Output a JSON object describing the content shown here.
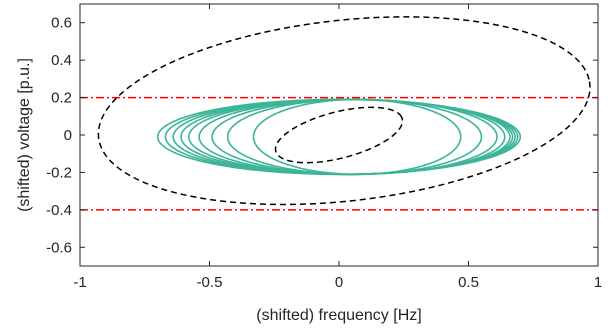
{
  "chart_data": {
    "type": "line",
    "title": "",
    "xlabel": "(shifted) frequency [Hz]",
    "ylabel": "(shifted) voltage [p.u.]",
    "xlim": [
      -1,
      1
    ],
    "ylim": [
      -0.7,
      0.7
    ],
    "xticks": [
      -1,
      -0.5,
      0,
      0.5,
      1
    ],
    "xtick_labels": [
      "-1",
      "-0.5",
      "0",
      "0.5",
      "1"
    ],
    "yticks": [
      -0.6,
      -0.4,
      -0.2,
      0,
      0.2,
      0.4,
      0.6
    ],
    "ytick_labels": [
      "-0.6",
      "-0.4",
      "-0.2",
      "0",
      "0.2",
      "0.4",
      "0.6"
    ],
    "grid": false,
    "colors": {
      "trajectory": "#3cb497",
      "ellipse": "#000000",
      "limits": "#ff0000",
      "axes": "#262626"
    },
    "series": [
      {
        "style": "dash-dot red horizontal line",
        "x": [
          -1,
          1
        ],
        "y": [
          0.2,
          0.2
        ]
      },
      {
        "style": "dash-dot red horizontal line",
        "x": [
          -1,
          1
        ],
        "y": [
          -0.4,
          -0.4
        ]
      },
      {
        "style": "dashed black ellipse (outer)",
        "center": [
          0.02,
          0.13
        ],
        "semi_axes": [
          0.96,
          0.48
        ],
        "rotation_deg": 10
      },
      {
        "style": "dashed black ellipse (inner)",
        "center": [
          0.0,
          0.0
        ],
        "semi_axes": [
          0.26,
          0.12
        ],
        "rotation_deg": 22
      },
      {
        "style": "solid teal nested ellipses (trajectory loops)",
        "loops": [
          {
            "center": [
              0.0,
              -0.01
            ],
            "semi_axes": [
              0.7,
              0.2
            ]
          },
          {
            "center": [
              0.01,
              -0.01
            ],
            "semi_axes": [
              0.68,
              0.2
            ]
          },
          {
            "center": [
              0.02,
              -0.01
            ],
            "semi_axes": [
              0.66,
              0.2
            ]
          },
          {
            "center": [
              0.03,
              -0.01
            ],
            "semi_axes": [
              0.64,
              0.2
            ]
          },
          {
            "center": [
              0.04,
              -0.01
            ],
            "semi_axes": [
              0.62,
              0.2
            ]
          },
          {
            "center": [
              0.05,
              -0.01
            ],
            "semi_axes": [
              0.59,
              0.2
            ]
          },
          {
            "center": [
              0.06,
              -0.01
            ],
            "semi_axes": [
              0.55,
              0.2
            ]
          },
          {
            "center": [
              0.06,
              -0.01
            ],
            "semi_axes": [
              0.49,
              0.2
            ]
          },
          {
            "center": [
              0.07,
              -0.01
            ],
            "semi_axes": [
              0.4,
              0.2
            ]
          }
        ]
      }
    ]
  }
}
